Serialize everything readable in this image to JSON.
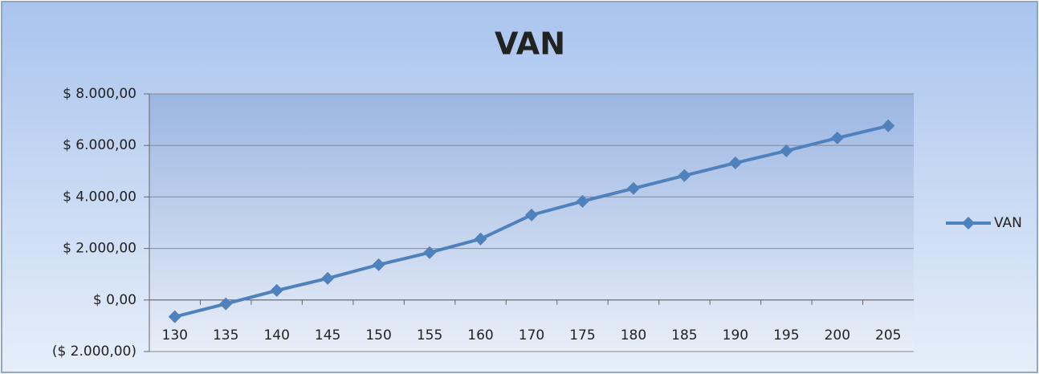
{
  "chart_data": {
    "type": "line",
    "title": "VAN",
    "categories": [
      "130",
      "135",
      "140",
      "145",
      "150",
      "155",
      "160",
      "170",
      "175",
      "180",
      "185",
      "190",
      "195",
      "200",
      "205"
    ],
    "series": [
      {
        "name": "VAN",
        "color": "#4f81bd",
        "values": [
          -650,
          -150,
          370,
          840,
          1370,
          1840,
          2370,
          3300,
          3830,
          4330,
          4830,
          5320,
          5790,
          6290,
          6760
        ]
      }
    ],
    "ylim": [
      -2000,
      8000
    ],
    "yticks": [
      {
        "value": -2000,
        "label": "($ 2.000,00)"
      },
      {
        "value": 0,
        "label": "$ 0,00"
      },
      {
        "value": 2000,
        "label": "$ 2.000,00"
      },
      {
        "value": 4000,
        "label": "$ 4.000,00"
      },
      {
        "value": 6000,
        "label": "$ 6.000,00"
      },
      {
        "value": 8000,
        "label": "$ 8.000,00"
      }
    ],
    "negative_tick_color": "#e00000",
    "grid": true,
    "legend": "right"
  }
}
